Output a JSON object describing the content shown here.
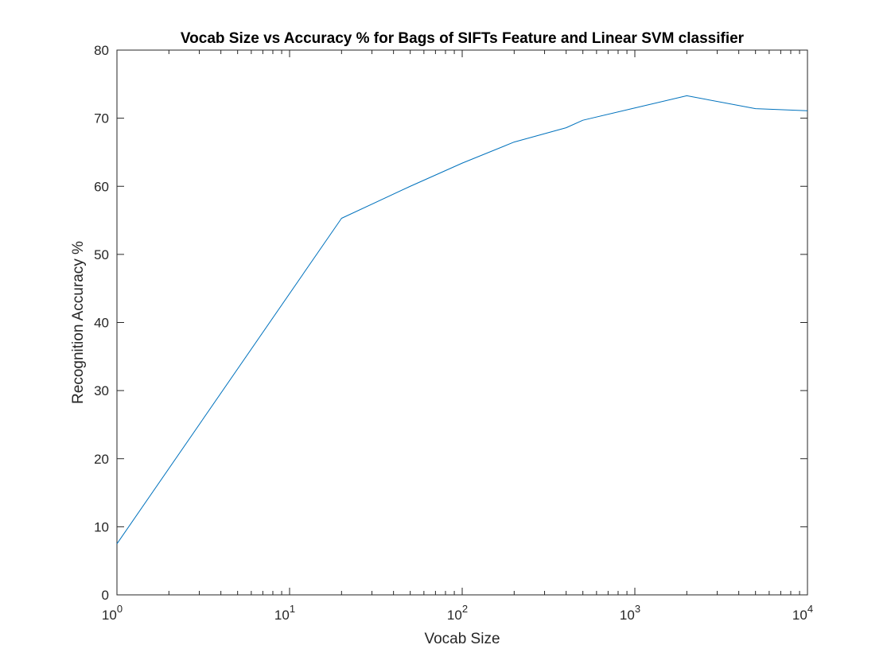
{
  "chart_data": {
    "type": "line",
    "title": "Vocab Size vs Accuracy % for Bags of SIFTs Feature and Linear SVM classifier",
    "xlabel": "Vocab Size",
    "ylabel": "Recognition Accuracy %",
    "xscale": "log",
    "xlim": [
      1,
      10000
    ],
    "ylim": [
      0,
      80
    ],
    "grid": false,
    "legend": "none",
    "x_tick_labels": [
      {
        "base": "10",
        "exp": "0"
      },
      {
        "base": "10",
        "exp": "1"
      },
      {
        "base": "10",
        "exp": "2"
      },
      {
        "base": "10",
        "exp": "3"
      },
      {
        "base": "10",
        "exp": "4"
      }
    ],
    "y_ticks": [
      0,
      10,
      20,
      30,
      40,
      50,
      60,
      70,
      80
    ],
    "y_tick_labels": [
      "0",
      "10",
      "20",
      "30",
      "40",
      "50",
      "60",
      "70",
      "80"
    ],
    "series": [
      {
        "color": "#0072BD",
        "x": [
          1,
          20,
          50,
          100,
          200,
          400,
          500,
          1000,
          2000,
          5000,
          10000
        ],
        "y": [
          7.5,
          55.3,
          60.0,
          63.4,
          66.5,
          68.6,
          69.7,
          71.5,
          73.3,
          71.4,
          71.1
        ]
      }
    ]
  }
}
